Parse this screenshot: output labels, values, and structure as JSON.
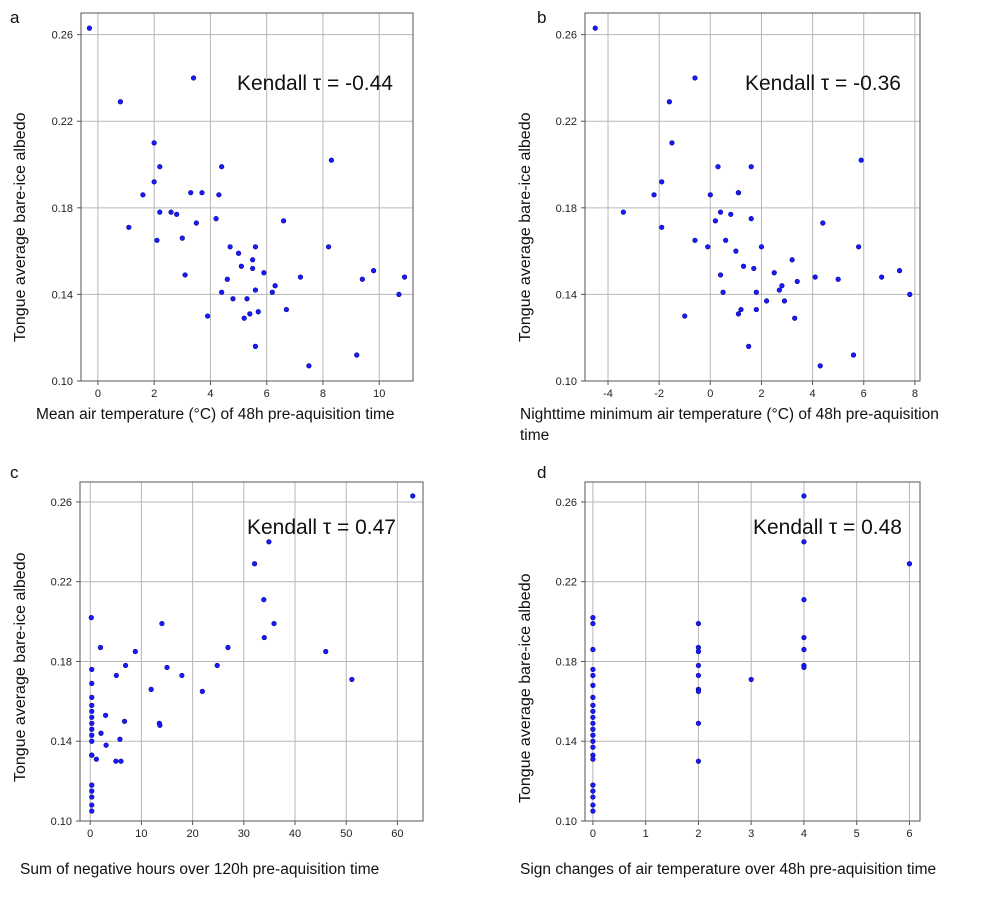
{
  "chart_data": [
    {
      "type": "scatter",
      "panel": "a",
      "ylabel": "Tongue average bare-ice albedo",
      "xlabel": "Mean air temperature (°C) of 48h pre-aquisition time",
      "annotation": "Kendall τ = -0.44",
      "xlim": [
        -0.6,
        11.2
      ],
      "ylim": [
        0.1,
        0.27
      ],
      "xticks": [
        0,
        2,
        4,
        6,
        8,
        10
      ],
      "yticks": [
        0.1,
        0.14,
        0.18,
        0.22,
        0.26
      ],
      "ytick_labels": [
        "0.10",
        "0.14",
        "0.18",
        "0.22",
        "0.26"
      ],
      "grid": true,
      "point_color": "#1a1aff",
      "points": [
        [
          -0.3,
          0.263
        ],
        [
          0.8,
          0.229
        ],
        [
          3.4,
          0.24
        ],
        [
          1.1,
          0.171
        ],
        [
          1.6,
          0.186
        ],
        [
          2.0,
          0.192
        ],
        [
          2.0,
          0.21
        ],
        [
          2.1,
          0.165
        ],
        [
          2.2,
          0.199
        ],
        [
          2.2,
          0.178
        ],
        [
          2.6,
          0.178
        ],
        [
          2.8,
          0.177
        ],
        [
          3.0,
          0.166
        ],
        [
          3.1,
          0.149
        ],
        [
          3.3,
          0.187
        ],
        [
          3.5,
          0.173
        ],
        [
          3.7,
          0.187
        ],
        [
          3.9,
          0.13
        ],
        [
          4.2,
          0.175
        ],
        [
          4.3,
          0.186
        ],
        [
          4.4,
          0.199
        ],
        [
          4.4,
          0.141
        ],
        [
          4.6,
          0.147
        ],
        [
          4.7,
          0.162
        ],
        [
          4.8,
          0.138
        ],
        [
          5.0,
          0.159
        ],
        [
          5.1,
          0.153
        ],
        [
          5.2,
          0.129
        ],
        [
          5.3,
          0.138
        ],
        [
          5.4,
          0.131
        ],
        [
          5.5,
          0.156
        ],
        [
          5.5,
          0.152
        ],
        [
          5.6,
          0.142
        ],
        [
          5.6,
          0.162
        ],
        [
          5.6,
          0.116
        ],
        [
          5.7,
          0.132
        ],
        [
          5.9,
          0.15
        ],
        [
          6.2,
          0.141
        ],
        [
          6.3,
          0.144
        ],
        [
          6.6,
          0.174
        ],
        [
          6.7,
          0.133
        ],
        [
          7.2,
          0.148
        ],
        [
          7.5,
          0.107
        ],
        [
          8.2,
          0.162
        ],
        [
          8.3,
          0.202
        ],
        [
          9.2,
          0.112
        ],
        [
          9.4,
          0.147
        ],
        [
          9.8,
          0.151
        ],
        [
          10.7,
          0.14
        ],
        [
          10.9,
          0.148
        ]
      ]
    },
    {
      "type": "scatter",
      "panel": "b",
      "ylabel": "Tongue average bare-ice albedo",
      "xlabel": "Nighttime minimum air temperature (°C) of 48h pre-aquisition time",
      "annotation": "Kendall τ = -0.36",
      "xlim": [
        -4.9,
        8.2
      ],
      "ylim": [
        0.1,
        0.27
      ],
      "xticks": [
        -4,
        -2,
        0,
        2,
        4,
        6,
        8
      ],
      "yticks": [
        0.1,
        0.14,
        0.18,
        0.22,
        0.26
      ],
      "ytick_labels": [
        "0.10",
        "0.14",
        "0.18",
        "0.22",
        "0.26"
      ],
      "grid": true,
      "point_color": "#1a1aff",
      "points": [
        [
          -4.5,
          0.263
        ],
        [
          -0.6,
          0.24
        ],
        [
          -1.6,
          0.229
        ],
        [
          -1.5,
          0.21
        ],
        [
          -1.9,
          0.192
        ],
        [
          -2.2,
          0.186
        ],
        [
          -3.4,
          0.178
        ],
        [
          -1.9,
          0.171
        ],
        [
          -1.0,
          0.13
        ],
        [
          -0.6,
          0.165
        ],
        [
          -0.1,
          0.162
        ],
        [
          0.0,
          0.186
        ],
        [
          0.2,
          0.174
        ],
        [
          0.3,
          0.199
        ],
        [
          0.4,
          0.178
        ],
        [
          0.4,
          0.149
        ],
        [
          0.5,
          0.141
        ],
        [
          0.6,
          0.165
        ],
        [
          0.8,
          0.177
        ],
        [
          1.0,
          0.16
        ],
        [
          1.1,
          0.187
        ],
        [
          1.1,
          0.187
        ],
        [
          1.1,
          0.131
        ],
        [
          1.2,
          0.133
        ],
        [
          1.3,
          0.153
        ],
        [
          1.5,
          0.116
        ],
        [
          1.6,
          0.199
        ],
        [
          1.6,
          0.175
        ],
        [
          1.7,
          0.152
        ],
        [
          1.8,
          0.141
        ],
        [
          1.8,
          0.133
        ],
        [
          2.0,
          0.162
        ],
        [
          2.2,
          0.137
        ],
        [
          2.5,
          0.15
        ],
        [
          2.7,
          0.142
        ],
        [
          2.8,
          0.144
        ],
        [
          2.9,
          0.137
        ],
        [
          3.2,
          0.156
        ],
        [
          3.3,
          0.129
        ],
        [
          3.4,
          0.146
        ],
        [
          4.1,
          0.148
        ],
        [
          4.3,
          0.107
        ],
        [
          4.4,
          0.173
        ],
        [
          5.0,
          0.147
        ],
        [
          5.6,
          0.112
        ],
        [
          5.8,
          0.162
        ],
        [
          5.9,
          0.202
        ],
        [
          6.7,
          0.148
        ],
        [
          7.4,
          0.151
        ],
        [
          7.8,
          0.14
        ]
      ]
    },
    {
      "type": "scatter",
      "panel": "c",
      "ylabel": "Tongue average bare-ice albedo",
      "xlabel": "Sum of negative hours over 120h pre-aquisition time",
      "annotation": "Kendall τ = 0.47",
      "xlim": [
        -2,
        65
      ],
      "ylim": [
        0.1,
        0.27
      ],
      "xticks": [
        0,
        10,
        20,
        30,
        40,
        50,
        60
      ],
      "yticks": [
        0.1,
        0.14,
        0.18,
        0.22,
        0.26
      ],
      "ytick_labels": [
        "0.10",
        "0.14",
        "0.18",
        "0.22",
        "0.26"
      ],
      "grid": true,
      "point_color": "#1a1aff",
      "points": [
        [
          0.2,
          0.202
        ],
        [
          0.3,
          0.176
        ],
        [
          0.3,
          0.169
        ],
        [
          0.3,
          0.162
        ],
        [
          0.3,
          0.158
        ],
        [
          0.3,
          0.155
        ],
        [
          0.3,
          0.152
        ],
        [
          0.3,
          0.149
        ],
        [
          0.3,
          0.146
        ],
        [
          0.3,
          0.143
        ],
        [
          0.3,
          0.14
        ],
        [
          0.3,
          0.133
        ],
        [
          0.3,
          0.133
        ],
        [
          0.3,
          0.118
        ],
        [
          0.3,
          0.115
        ],
        [
          0.3,
          0.112
        ],
        [
          0.3,
          0.108
        ],
        [
          0.3,
          0.105
        ],
        [
          1.2,
          0.131
        ],
        [
          2.0,
          0.187
        ],
        [
          2.1,
          0.144
        ],
        [
          3.0,
          0.153
        ],
        [
          3.1,
          0.138
        ],
        [
          5.0,
          0.13
        ],
        [
          5.1,
          0.173
        ],
        [
          5.8,
          0.141
        ],
        [
          6.0,
          0.13
        ],
        [
          6.7,
          0.15
        ],
        [
          6.9,
          0.178
        ],
        [
          8.8,
          0.185
        ],
        [
          11.9,
          0.166
        ],
        [
          13.5,
          0.149
        ],
        [
          13.6,
          0.148
        ],
        [
          14.0,
          0.199
        ],
        [
          15.0,
          0.177
        ],
        [
          17.9,
          0.173
        ],
        [
          21.9,
          0.165
        ],
        [
          24.8,
          0.178
        ],
        [
          26.9,
          0.187
        ],
        [
          32.1,
          0.229
        ],
        [
          33.9,
          0.211
        ],
        [
          34.0,
          0.192
        ],
        [
          34.9,
          0.24
        ],
        [
          35.9,
          0.199
        ],
        [
          46.0,
          0.185
        ],
        [
          51.1,
          0.171
        ],
        [
          63.0,
          0.263
        ]
      ]
    },
    {
      "type": "scatter",
      "panel": "d",
      "ylabel": "Tongue average bare-ice albedo",
      "xlabel": "Sign changes of air temperature over 48h pre-aquisition time",
      "annotation": "Kendall τ = 0.48",
      "xlim": [
        -0.15,
        6.2
      ],
      "ylim": [
        0.1,
        0.27
      ],
      "xticks": [
        0,
        1,
        2,
        3,
        4,
        5,
        6
      ],
      "yticks": [
        0.1,
        0.14,
        0.18,
        0.22,
        0.26
      ],
      "ytick_labels": [
        "0.10",
        "0.14",
        "0.18",
        "0.22",
        "0.26"
      ],
      "grid": true,
      "point_color": "#1a1aff",
      "points": [
        [
          0,
          0.202
        ],
        [
          0,
          0.199
        ],
        [
          0,
          0.186
        ],
        [
          0,
          0.176
        ],
        [
          0,
          0.173
        ],
        [
          0,
          0.168
        ],
        [
          0,
          0.162
        ],
        [
          0,
          0.158
        ],
        [
          0,
          0.155
        ],
        [
          0,
          0.152
        ],
        [
          0,
          0.149
        ],
        [
          0,
          0.146
        ],
        [
          0,
          0.143
        ],
        [
          0,
          0.14
        ],
        [
          0,
          0.137
        ],
        [
          0,
          0.133
        ],
        [
          0,
          0.131
        ],
        [
          0,
          0.118
        ],
        [
          0,
          0.115
        ],
        [
          0,
          0.112
        ],
        [
          0,
          0.108
        ],
        [
          0,
          0.105
        ],
        [
          2,
          0.199
        ],
        [
          2,
          0.187
        ],
        [
          2,
          0.185
        ],
        [
          2,
          0.178
        ],
        [
          2,
          0.173
        ],
        [
          2,
          0.166
        ],
        [
          2,
          0.165
        ],
        [
          2,
          0.149
        ],
        [
          2,
          0.13
        ],
        [
          3,
          0.171
        ],
        [
          4,
          0.263
        ],
        [
          4,
          0.24
        ],
        [
          4,
          0.211
        ],
        [
          4,
          0.192
        ],
        [
          4,
          0.186
        ],
        [
          4,
          0.178
        ],
        [
          4,
          0.177
        ],
        [
          6,
          0.229
        ]
      ]
    }
  ]
}
